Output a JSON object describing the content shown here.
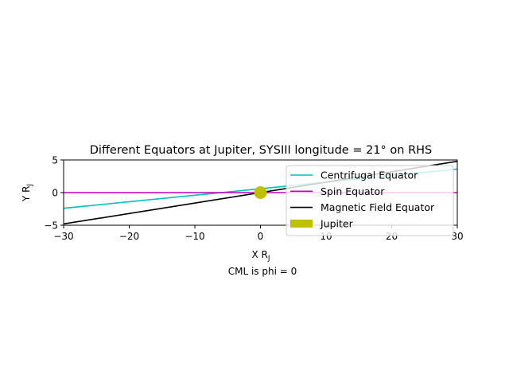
{
  "chart_data": {
    "type": "line",
    "title": "Different Equators at Jupiter, SYSIII longitude =   21° on RHS",
    "xlabel": "X R",
    "xlabel_sub": "J",
    "ylabel": "Y R",
    "ylabel_sub": "J",
    "caption": "CML is phi = 0",
    "xlim": [
      -30,
      30
    ],
    "ylim": [
      -5,
      5
    ],
    "xticks": [
      -30,
      -20,
      -10,
      0,
      10,
      20,
      30
    ],
    "yticks": [
      -5,
      0,
      5
    ],
    "xtick_labels": [
      "−30",
      "−20",
      "−10",
      "0",
      "10",
      "20",
      "30"
    ],
    "ytick_labels": [
      "−5",
      "0",
      "5"
    ],
    "grid": false,
    "legend_position": "upper-right",
    "series": [
      {
        "name": "Centrifugal Equator",
        "color": "#00bfbf",
        "x": [
          -30,
          30
        ],
        "y": [
          -2.4,
          3.6
        ]
      },
      {
        "name": "Spin Equator",
        "color": "#bf00bf",
        "x": [
          -30,
          30
        ],
        "y": [
          0,
          0
        ]
      },
      {
        "name": "Magnetic Field Equator",
        "color": "#000000",
        "x": [
          -30,
          30
        ],
        "y": [
          -4.8,
          4.8
        ]
      }
    ],
    "markers": [
      {
        "name": "Jupiter",
        "color": "#bfbf00",
        "x": 0,
        "y": 0
      }
    ]
  }
}
